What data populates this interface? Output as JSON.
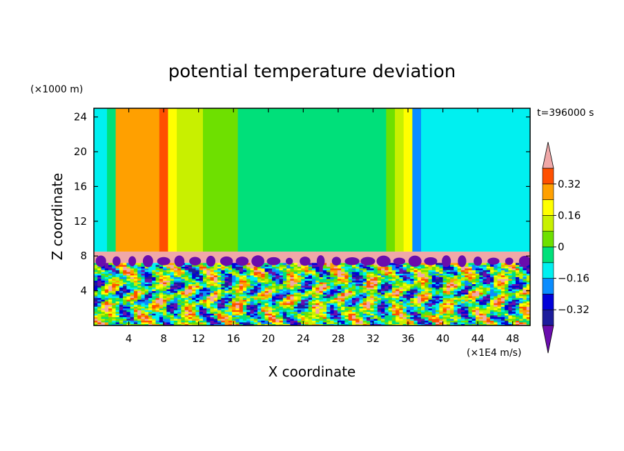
{
  "chart_data": {
    "type": "heatmap",
    "title": "potential temperature deviation",
    "xlabel": "X coordinate",
    "ylabel": "Z coordinate",
    "x_unit": "(×1E4 m/s)",
    "y_unit": "(×1000 m)",
    "time_label": "t=396000 s",
    "xlim": [
      0,
      50
    ],
    "ylim": [
      0,
      25
    ],
    "x_ticks": [
      4,
      8,
      12,
      16,
      20,
      24,
      28,
      32,
      36,
      40,
      44,
      48
    ],
    "y_ticks": [
      4,
      8,
      12,
      16,
      20,
      24
    ],
    "colorbar": {
      "tick_labels": [
        "0.32",
        "0.16",
        "0",
        "−0.16",
        "−0.32"
      ],
      "tick_values": [
        0.32,
        0.16,
        0,
        -0.16,
        -0.32
      ],
      "levels": [
        -0.4,
        -0.32,
        -0.24,
        -0.16,
        -0.08,
        0,
        0.08,
        0.16,
        0.24,
        0.32,
        0.4
      ],
      "colors": [
        "#6a0dad",
        "#1c1c9c",
        "#0000d8",
        "#0a8cff",
        "#00f0f0",
        "#00e07a",
        "#6ee000",
        "#c8f000",
        "#ffff00",
        "#ffa000",
        "#ff5000",
        "#ff2020",
        "#f0a8a8"
      ],
      "extend": "both"
    },
    "upper_region_columns": {
      "description_x": [
        0,
        1,
        2,
        3,
        4,
        5,
        6,
        7,
        8,
        9,
        10,
        11,
        12,
        13,
        14,
        15,
        16,
        17,
        18,
        19,
        20,
        21,
        22,
        23,
        24,
        25,
        26,
        27,
        28,
        29,
        30,
        31,
        32,
        33,
        34,
        35,
        36,
        37,
        38,
        39,
        40,
        41,
        42,
        43,
        44,
        45,
        46,
        47,
        48,
        49,
        50
      ],
      "values": [
        -0.1,
        -0.1,
        -0.05,
        0.3,
        0.28,
        0.26,
        0.25,
        0.3,
        0.32,
        0.18,
        0.14,
        0.14,
        0.1,
        0.06,
        0.05,
        0.03,
        0.02,
        -0.02,
        -0.03,
        -0.02,
        -0.03,
        -0.02,
        -0.02,
        -0.02,
        -0.03,
        -0.02,
        -0.02,
        -0.03,
        -0.03,
        -0.02,
        -0.03,
        -0.02,
        -0.03,
        -0.02,
        0.02,
        0.1,
        0.18,
        -0.2,
        -0.16,
        -0.1,
        -0.1,
        -0.12,
        -0.14,
        -0.1,
        -0.1,
        -0.12,
        -0.1,
        -0.1,
        -0.1,
        -0.1,
        -0.1
      ]
    },
    "inversion_layer_z": [
      7.2,
      8.5
    ],
    "inversion_layer_value": 0.4
  }
}
